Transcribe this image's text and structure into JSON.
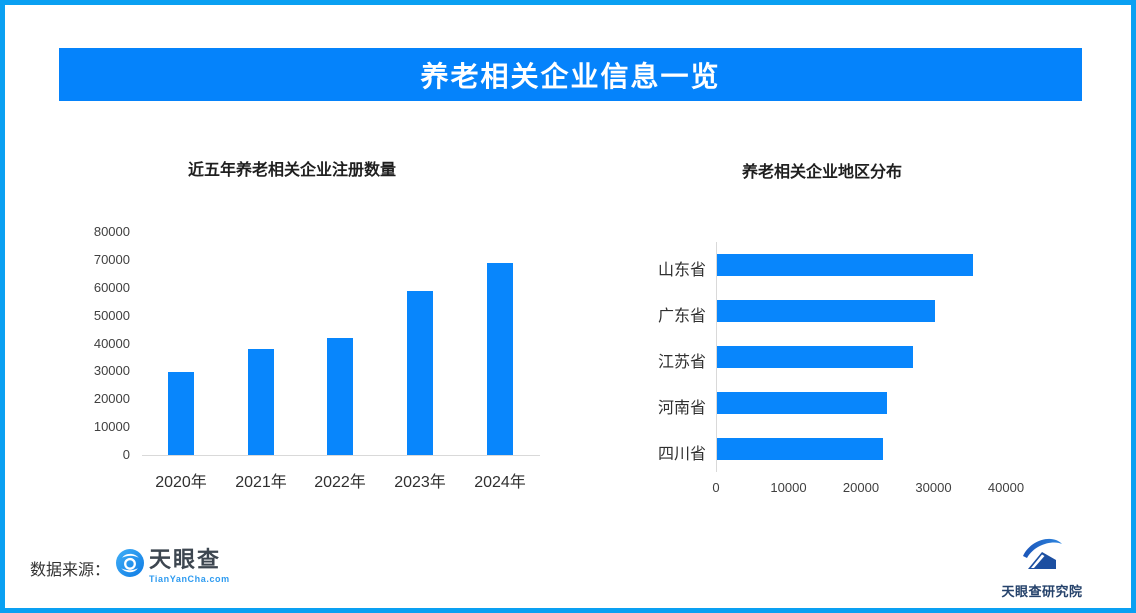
{
  "banner": {
    "title": "养老相关企业信息一览"
  },
  "colors": {
    "banner_blue": "#0583FB",
    "bar_blue": "#0886FC",
    "border_blue": "#0AA0F2",
    "axis_gray": "#D9D9D9",
    "tick_text": "#404040",
    "title_text": "#1F1F1F"
  },
  "chart_data": [
    {
      "type": "bar",
      "orientation": "vertical",
      "title": "近五年养老相关企业注册数量",
      "categories": [
        "2020年",
        "2021年",
        "2022年",
        "2023年",
        "2024年"
      ],
      "values": [
        29600,
        38000,
        41900,
        59000,
        69000
      ],
      "ylim": [
        0,
        80000
      ],
      "yticks": [
        0,
        10000,
        20000,
        30000,
        40000,
        50000,
        60000,
        70000,
        80000
      ],
      "xlabel": "",
      "ylabel": "",
      "grid": false,
      "legend": "none",
      "bar_color": "#0886FC"
    },
    {
      "type": "bar",
      "orientation": "horizontal",
      "title": "养老相关企业地区分布",
      "categories": [
        "山东省",
        "广东省",
        "江苏省",
        "河南省",
        "四川省"
      ],
      "values": [
        35300,
        30100,
        27100,
        23500,
        22900
      ],
      "xlim": [
        0,
        40000
      ],
      "xticks": [
        0,
        10000,
        20000,
        30000,
        40000
      ],
      "xlabel": "",
      "ylabel": "",
      "grid": false,
      "legend": "none",
      "bar_color": "#0886FC"
    }
  ],
  "footer": {
    "source_label": "数据来源：",
    "tianyancha_name": "天眼查",
    "tianyancha_domain": "TianYanCha.com",
    "research_institute": "天眼查研究院"
  }
}
